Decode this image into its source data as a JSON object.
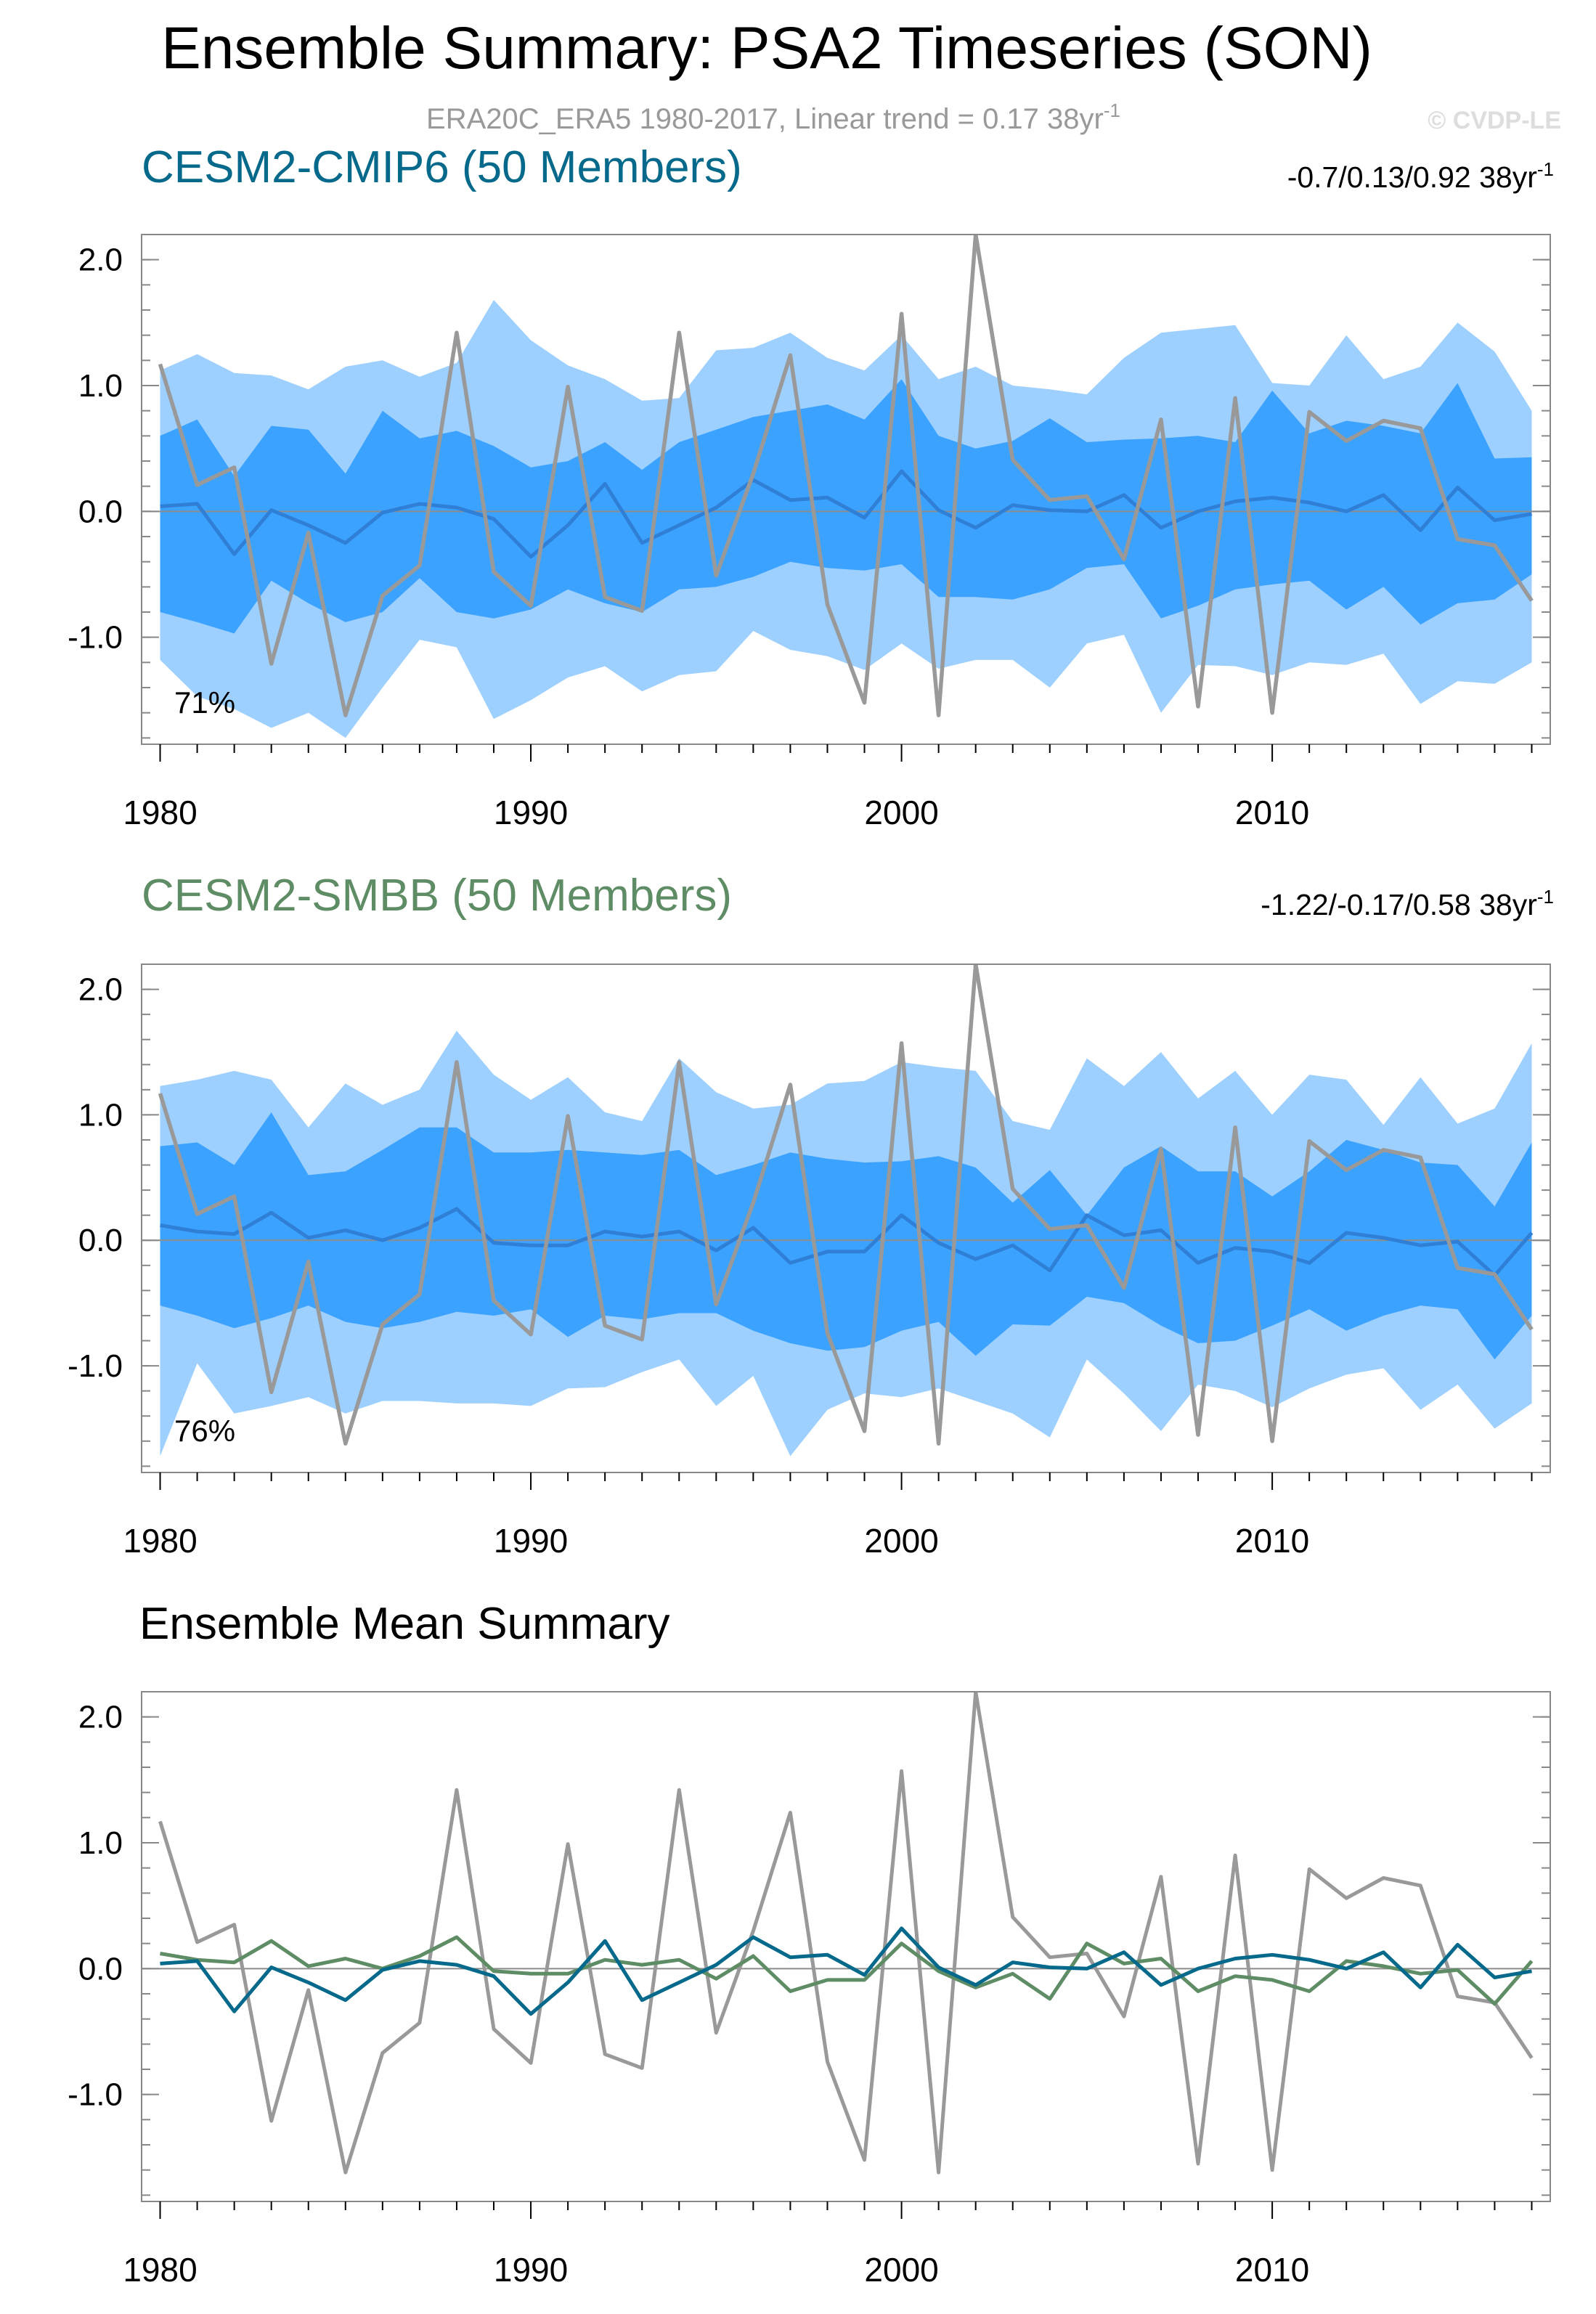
{
  "page": {
    "title": "Ensemble Summary: PSA2 Timeseries (SON)",
    "subtitle_main": "ERA20C_ERA5 1980-2017, Linear trend = 0.17 38yr",
    "subtitle_sup": "-1",
    "copyright": "© CVDP-LE"
  },
  "colors": {
    "obs": "#999999",
    "cmip6": "#05698B",
    "smbb": "#5E8C64",
    "outer": "#9DCFFF",
    "inner": "#3BA3FF",
    "ensmean": "#2F7FD6",
    "zero": "#8C8C8C",
    "frame": "#000000"
  },
  "chart_data": [
    {
      "type": "area",
      "title": "CESM2-CMIP6 (50 Members)",
      "trend_main": "-0.7/0.13/0.92 38yr",
      "trend_sup": "-1",
      "percent_label": "71%",
      "x": [
        1980,
        1981,
        1982,
        1983,
        1984,
        1985,
        1986,
        1987,
        1988,
        1989,
        1990,
        1991,
        1992,
        1993,
        1994,
        1995,
        1996,
        1997,
        1998,
        1999,
        2000,
        2001,
        2002,
        2003,
        2004,
        2005,
        2006,
        2007,
        2008,
        2009,
        2010,
        2011,
        2012,
        2013,
        2014,
        2015,
        2016,
        2017
      ],
      "xlim": [
        1979.5,
        2017.5
      ],
      "ylim": [
        -1.85,
        2.2
      ],
      "xticks": [
        1980,
        1990,
        2000,
        2010
      ],
      "xtick_labels": [
        "1980",
        "1990",
        "2000",
        "2010"
      ],
      "yticks": [
        -1.0,
        0.0,
        1.0,
        2.0
      ],
      "ytick_labels": [
        "-1.0",
        "0.0",
        "1.0",
        "2.0"
      ],
      "outer_upper": [
        1.12,
        1.25,
        1.1,
        1.08,
        0.97,
        1.15,
        1.2,
        1.07,
        1.18,
        1.68,
        1.36,
        1.16,
        1.05,
        0.88,
        0.9,
        1.28,
        1.3,
        1.42,
        1.22,
        1.12,
        1.4,
        1.05,
        1.15,
        1.0,
        0.97,
        0.93,
        1.22,
        1.42,
        1.45,
        1.48,
        1.02,
        1.0,
        1.4,
        1.05,
        1.15,
        1.5,
        1.27,
        0.8
      ],
      "outer_lower": [
        -1.18,
        -1.47,
        -1.57,
        -1.72,
        -1.6,
        -1.8,
        -1.4,
        -1.02,
        -1.08,
        -1.65,
        -1.5,
        -1.32,
        -1.23,
        -1.43,
        -1.3,
        -1.27,
        -0.95,
        -1.1,
        -1.15,
        -1.26,
        -1.05,
        -1.25,
        -1.18,
        -1.18,
        -1.4,
        -1.05,
        -0.98,
        -1.6,
        -1.22,
        -1.23,
        -1.3,
        -1.2,
        -1.22,
        -1.13,
        -1.53,
        -1.35,
        -1.37,
        -1.2
      ],
      "inner_upper": [
        0.6,
        0.73,
        0.28,
        0.68,
        0.65,
        0.3,
        0.8,
        0.58,
        0.64,
        0.52,
        0.35,
        0.4,
        0.55,
        0.33,
        0.55,
        0.65,
        0.75,
        0.8,
        0.85,
        0.73,
        1.05,
        0.6,
        0.5,
        0.56,
        0.74,
        0.55,
        0.57,
        0.58,
        0.6,
        0.55,
        0.96,
        0.62,
        0.72,
        0.68,
        0.62,
        1.02,
        0.42,
        0.43
      ],
      "inner_lower": [
        -0.8,
        -0.88,
        -0.97,
        -0.55,
        -0.73,
        -0.88,
        -0.8,
        -0.53,
        -0.8,
        -0.85,
        -0.78,
        -0.62,
        -0.73,
        -0.8,
        -0.62,
        -0.6,
        -0.52,
        -0.4,
        -0.45,
        -0.47,
        -0.42,
        -0.68,
        -0.68,
        -0.7,
        -0.62,
        -0.45,
        -0.42,
        -0.85,
        -0.75,
        -0.62,
        -0.58,
        -0.55,
        -0.78,
        -0.6,
        -0.9,
        -0.73,
        -0.7,
        -0.5
      ],
      "ensemble_mean": [
        0.04,
        0.06,
        -0.34,
        0.01,
        -0.11,
        -0.25,
        -0.01,
        0.06,
        0.03,
        -0.06,
        -0.36,
        -0.11,
        0.22,
        -0.25,
        -0.11,
        0.03,
        0.25,
        0.09,
        0.11,
        -0.05,
        0.32,
        0.01,
        -0.13,
        0.05,
        0.01,
        0.0,
        0.13,
        -0.13,
        0.0,
        0.08,
        0.11,
        0.07,
        0.0,
        0.13,
        -0.15,
        0.19,
        -0.07,
        -0.02
      ],
      "observed": [
        1.17,
        0.21,
        0.35,
        -1.21,
        -0.17,
        -1.62,
        -0.67,
        -0.43,
        1.42,
        -0.48,
        -0.75,
        0.99,
        -0.68,
        -0.79,
        1.42,
        -0.51,
        0.3,
        1.24,
        -0.74,
        -1.52,
        1.57,
        -1.62,
        2.2,
        0.41,
        0.09,
        0.12,
        -0.38,
        0.73,
        -1.55,
        0.9,
        -1.6,
        0.79,
        0.56,
        0.72,
        0.66,
        -0.22,
        -0.27,
        -0.71
      ]
    },
    {
      "type": "area",
      "title": "CESM2-SMBB (50 Members)",
      "trend_main": "-1.22/-0.17/0.58 38yr",
      "trend_sup": "-1",
      "percent_label": "76%",
      "x": [
        1980,
        1981,
        1982,
        1983,
        1984,
        1985,
        1986,
        1987,
        1988,
        1989,
        1990,
        1991,
        1992,
        1993,
        1994,
        1995,
        1996,
        1997,
        1998,
        1999,
        2000,
        2001,
        2002,
        2003,
        2004,
        2005,
        2006,
        2007,
        2008,
        2009,
        2010,
        2011,
        2012,
        2013,
        2014,
        2015,
        2016,
        2017
      ],
      "xlim": [
        1979.5,
        2017.5
      ],
      "ylim": [
        -1.85,
        2.2
      ],
      "xticks": [
        1980,
        1990,
        2000,
        2010
      ],
      "xtick_labels": [
        "1980",
        "1990",
        "2000",
        "2010"
      ],
      "yticks": [
        -1.0,
        0.0,
        1.0,
        2.0
      ],
      "ytick_labels": [
        "-1.0",
        "0.0",
        "1.0",
        "2.0"
      ],
      "outer_upper": [
        1.23,
        1.28,
        1.35,
        1.28,
        0.9,
        1.25,
        1.08,
        1.2,
        1.67,
        1.32,
        1.12,
        1.3,
        1.02,
        0.95,
        1.45,
        1.18,
        1.05,
        1.08,
        1.25,
        1.27,
        1.42,
        1.38,
        1.35,
        0.95,
        0.88,
        1.45,
        1.23,
        1.5,
        1.13,
        1.35,
        1.0,
        1.32,
        1.28,
        0.92,
        1.3,
        0.93,
        1.05,
        1.57
      ],
      "outer_lower": [
        -1.72,
        -0.98,
        -1.38,
        -1.32,
        -1.25,
        -1.38,
        -1.28,
        -1.28,
        -1.3,
        -1.3,
        -1.32,
        -1.18,
        -1.17,
        -1.05,
        -0.95,
        -1.32,
        -1.08,
        -1.72,
        -1.35,
        -1.22,
        -1.25,
        -1.18,
        -1.28,
        -1.38,
        -1.57,
        -0.95,
        -1.22,
        -1.52,
        -1.15,
        -1.2,
        -1.33,
        -1.18,
        -1.07,
        -1.02,
        -1.35,
        -1.15,
        -1.5,
        -1.3
      ],
      "inner_upper": [
        0.75,
        0.78,
        0.6,
        1.02,
        0.52,
        0.55,
        0.72,
        0.9,
        0.9,
        0.7,
        0.7,
        0.72,
        0.7,
        0.68,
        0.72,
        0.52,
        0.6,
        0.7,
        0.65,
        0.62,
        0.63,
        0.67,
        0.58,
        0.3,
        0.56,
        0.2,
        0.58,
        0.75,
        0.55,
        0.55,
        0.35,
        0.55,
        0.8,
        0.72,
        0.62,
        0.6,
        0.27,
        0.78
      ],
      "inner_lower": [
        -0.52,
        -0.6,
        -0.7,
        -0.62,
        -0.52,
        -0.65,
        -0.7,
        -0.65,
        -0.57,
        -0.6,
        -0.55,
        -0.77,
        -0.6,
        -0.63,
        -0.58,
        -0.58,
        -0.72,
        -0.82,
        -0.88,
        -0.85,
        -0.72,
        -0.65,
        -0.92,
        -0.67,
        -0.68,
        -0.45,
        -0.5,
        -0.68,
        -0.82,
        -0.8,
        -0.68,
        -0.55,
        -0.72,
        -0.6,
        -0.52,
        -0.55,
        -0.95,
        -0.6
      ],
      "ensemble_mean": [
        0.12,
        0.07,
        0.05,
        0.22,
        0.02,
        0.08,
        0.0,
        0.1,
        0.25,
        -0.02,
        -0.04,
        -0.04,
        0.07,
        0.03,
        0.07,
        -0.08,
        0.1,
        -0.18,
        -0.09,
        -0.09,
        0.2,
        -0.02,
        -0.15,
        -0.04,
        -0.24,
        0.2,
        0.04,
        0.08,
        -0.18,
        -0.06,
        -0.09,
        -0.18,
        0.06,
        0.02,
        -0.04,
        -0.01,
        -0.28,
        0.06
      ],
      "observed": [
        1.17,
        0.21,
        0.35,
        -1.21,
        -0.17,
        -1.62,
        -0.67,
        -0.43,
        1.42,
        -0.48,
        -0.75,
        0.99,
        -0.68,
        -0.79,
        1.42,
        -0.51,
        0.3,
        1.24,
        -0.74,
        -1.52,
        1.57,
        -1.62,
        2.2,
        0.41,
        0.09,
        0.12,
        -0.38,
        0.73,
        -1.55,
        0.9,
        -1.6,
        0.79,
        0.56,
        0.72,
        0.66,
        -0.22,
        -0.27,
        -0.71
      ]
    },
    {
      "type": "line",
      "title": "Ensemble Mean Summary",
      "x": [
        1980,
        1981,
        1982,
        1983,
        1984,
        1985,
        1986,
        1987,
        1988,
        1989,
        1990,
        1991,
        1992,
        1993,
        1994,
        1995,
        1996,
        1997,
        1998,
        1999,
        2000,
        2001,
        2002,
        2003,
        2004,
        2005,
        2006,
        2007,
        2008,
        2009,
        2010,
        2011,
        2012,
        2013,
        2014,
        2015,
        2016,
        2017
      ],
      "xlim": [
        1979.5,
        2017.5
      ],
      "ylim": [
        -1.85,
        2.2
      ],
      "xticks": [
        1980,
        1990,
        2000,
        2010
      ],
      "xtick_labels": [
        "1980",
        "1990",
        "2000",
        "2010"
      ],
      "yticks": [
        -1.0,
        0.0,
        1.0,
        2.0
      ],
      "ytick_labels": [
        "-1.0",
        "0.0",
        "1.0",
        "2.0"
      ],
      "series": [
        {
          "name": "ERA20C_ERA5",
          "color_key": "obs",
          "values": [
            1.17,
            0.21,
            0.35,
            -1.21,
            -0.17,
            -1.62,
            -0.67,
            -0.43,
            1.42,
            -0.48,
            -0.75,
            0.99,
            -0.68,
            -0.79,
            1.42,
            -0.51,
            0.3,
            1.24,
            -0.74,
            -1.52,
            1.57,
            -1.62,
            2.2,
            0.41,
            0.09,
            0.12,
            -0.38,
            0.73,
            -1.55,
            0.9,
            -1.6,
            0.79,
            0.56,
            0.72,
            0.66,
            -0.22,
            -0.27,
            -0.71
          ]
        },
        {
          "name": "CESM2-SMBB",
          "color_key": "smbb",
          "values": [
            0.12,
            0.07,
            0.05,
            0.22,
            0.02,
            0.08,
            0.0,
            0.1,
            0.25,
            -0.02,
            -0.04,
            -0.04,
            0.07,
            0.03,
            0.07,
            -0.08,
            0.1,
            -0.18,
            -0.09,
            -0.09,
            0.2,
            -0.02,
            -0.15,
            -0.04,
            -0.24,
            0.2,
            0.04,
            0.08,
            -0.18,
            -0.06,
            -0.09,
            -0.18,
            0.06,
            0.02,
            -0.04,
            -0.01,
            -0.28,
            0.06
          ]
        },
        {
          "name": "CESM2-CMIP6",
          "color_key": "cmip6",
          "values": [
            0.04,
            0.06,
            -0.34,
            0.01,
            -0.11,
            -0.25,
            -0.01,
            0.06,
            0.03,
            -0.06,
            -0.36,
            -0.11,
            0.22,
            -0.25,
            -0.11,
            0.03,
            0.25,
            0.09,
            0.11,
            -0.05,
            0.32,
            0.01,
            -0.13,
            0.05,
            0.01,
            0.0,
            0.13,
            -0.13,
            0.0,
            0.08,
            0.11,
            0.07,
            0.0,
            0.13,
            -0.15,
            0.19,
            -0.07,
            -0.02
          ]
        }
      ]
    }
  ]
}
